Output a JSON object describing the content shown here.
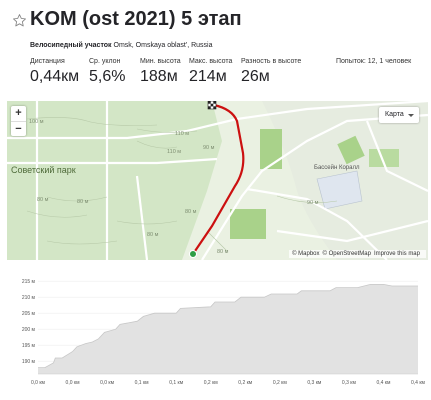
{
  "segment": {
    "title": "KOM (ost 2021) 5 этап",
    "location_type": "Велосипедный участок",
    "location": "Omsk, Omskaya oblast', Russia"
  },
  "stats": [
    {
      "label": "Дистанция",
      "value": "0,44км"
    },
    {
      "label": "Ср. уклон",
      "value": "5,6%"
    },
    {
      "label": "Мин. высота",
      "value": "188м"
    },
    {
      "label": "Макс. высота",
      "value": "214м"
    },
    {
      "label": "Разность в высоте",
      "value": "26м"
    },
    {
      "label": "Попыток: 12, 1 человек",
      "value": ""
    }
  ],
  "map": {
    "zoom_in": "+",
    "zoom_out": "−",
    "map_type": "Карта",
    "park_label": "Советский парк",
    "pool_label": "Бассейн Коралл",
    "attribution_mapbox": "© Mapbox",
    "attribution_osm": "© OpenStreetMap",
    "attribution_improve": "Improve this map",
    "contour_labels": [
      "100 м",
      "110 м",
      "110 м",
      "90 м",
      "80 м",
      "80 м",
      "90 м",
      "80 м",
      "80 м",
      "80 м"
    ],
    "colors": {
      "route": "#cc1010",
      "start": "#2e9e44",
      "park": "#cfe2c0",
      "block": "#a9d28a"
    }
  },
  "chart_data": {
    "type": "area",
    "title": "",
    "xlabel": "",
    "ylabel": "",
    "x_ticks": [
      "0,0 км",
      "0,0 км",
      "0,0 км",
      "0,1 км",
      "0,1 км",
      "0,2 км",
      "0,2 км",
      "0,2 км",
      "0,3 км",
      "0,3 км",
      "0,4 км",
      "0,4 км"
    ],
    "y_ticks": [
      "190 м",
      "195 м",
      "200 м",
      "205 м",
      "210 м",
      "215 м"
    ],
    "ylim": [
      186,
      216
    ],
    "xlim": [
      0,
      0.44
    ],
    "x": [
      0,
      0.008,
      0.018,
      0.02,
      0.028,
      0.04,
      0.045,
      0.055,
      0.063,
      0.07,
      0.077,
      0.09,
      0.095,
      0.115,
      0.122,
      0.135,
      0.16,
      0.165,
      0.2,
      0.205,
      0.228,
      0.235,
      0.262,
      0.27,
      0.3,
      0.305,
      0.338,
      0.345,
      0.37,
      0.385,
      0.4,
      0.41,
      0.44
    ],
    "y": [
      188,
      188,
      189.5,
      191,
      191,
      193,
      194.5,
      195.5,
      196,
      197,
      199,
      200,
      201.5,
      202.5,
      204,
      205,
      205,
      206.5,
      207,
      208.5,
      208.5,
      210,
      210,
      211,
      211,
      212,
      212,
      213,
      213,
      214,
      214,
      213.5,
      213.5
    ],
    "fill": "#e2e2e2",
    "line": "#c8c8c8",
    "grid": true
  }
}
